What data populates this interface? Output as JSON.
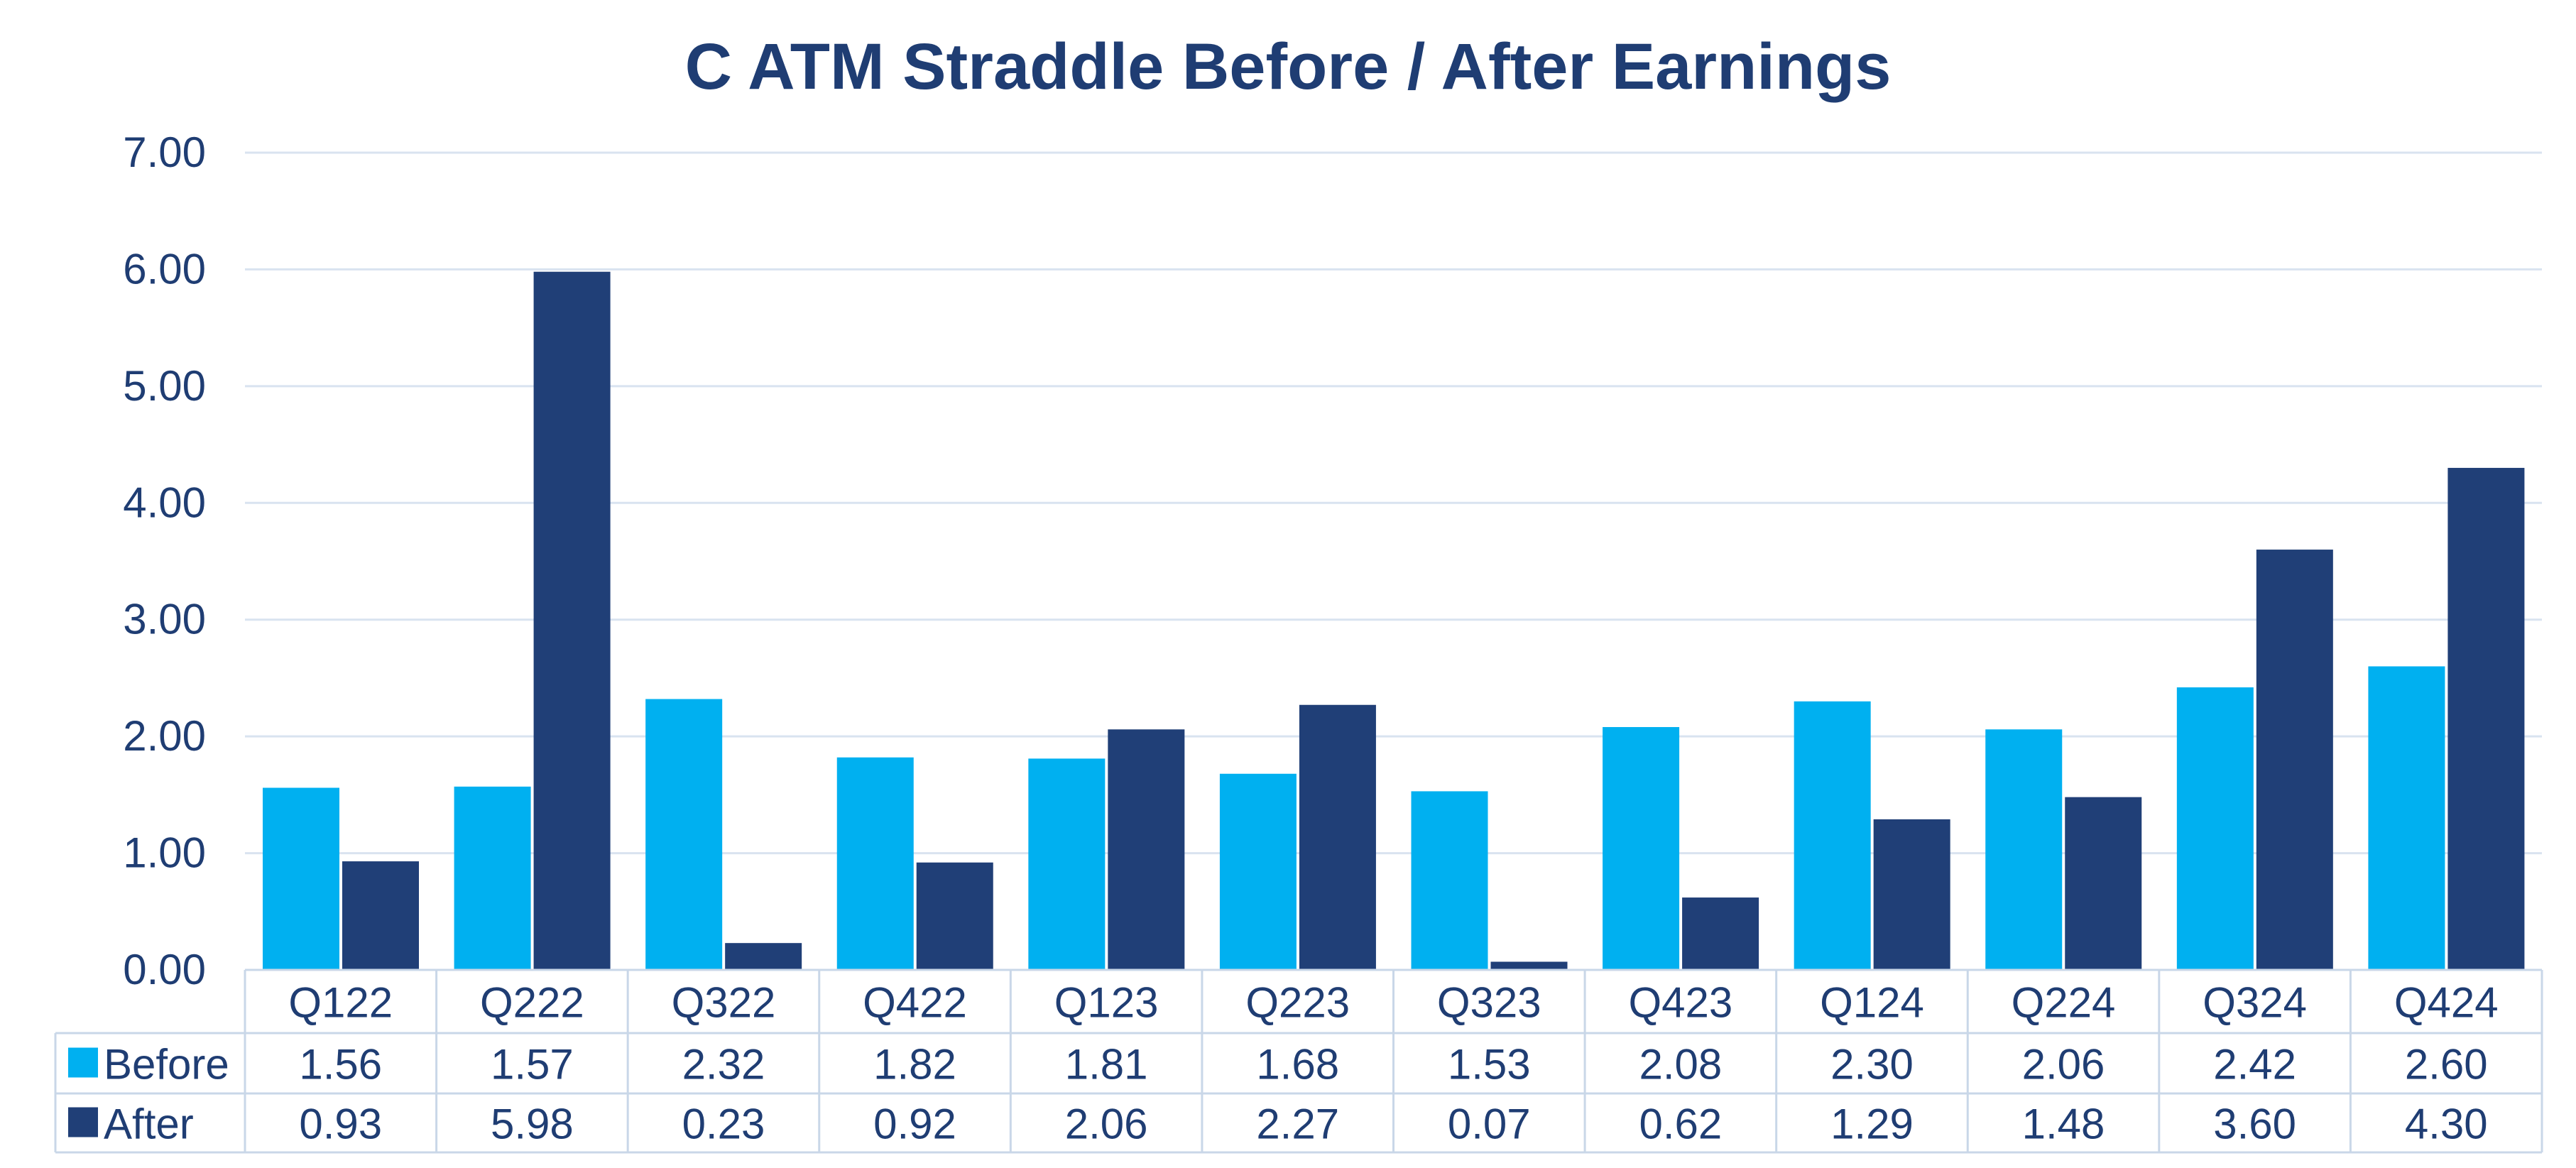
{
  "chart_data": {
    "type": "bar",
    "title": "C ATM Straddle Before / After Earnings",
    "xlabel": "",
    "ylabel": "",
    "ylim": [
      0,
      7
    ],
    "yticks": [
      "7.00",
      "6.00",
      "5.00",
      "4.00",
      "3.00",
      "2.00",
      "1.00",
      "0.00"
    ],
    "grid": true,
    "legend": "data-table-left",
    "categories": [
      "Q122",
      "Q222",
      "Q322",
      "Q422",
      "Q123",
      "Q223",
      "Q323",
      "Q423",
      "Q124",
      "Q224",
      "Q324",
      "Q424"
    ],
    "series": [
      {
        "name": "Before",
        "color": "#00b0f0",
        "values": [
          1.56,
          1.57,
          2.32,
          1.82,
          1.81,
          1.68,
          1.53,
          2.08,
          2.3,
          2.06,
          2.42,
          2.6
        ],
        "labels": [
          "1.56",
          "1.57",
          "2.32",
          "1.82",
          "1.81",
          "1.68",
          "1.53",
          "2.08",
          "2.30",
          "2.06",
          "2.42",
          "2.60"
        ]
      },
      {
        "name": "After",
        "color": "#203f77",
        "values": [
          0.93,
          5.98,
          0.23,
          0.92,
          2.06,
          2.27,
          0.07,
          0.62,
          1.29,
          1.48,
          3.6,
          4.3
        ],
        "labels": [
          "0.93",
          "5.98",
          "0.23",
          "0.92",
          "2.06",
          "2.27",
          "0.07",
          "0.62",
          "1.29",
          "1.48",
          "3.60",
          "4.30"
        ]
      }
    ],
    "colors": {
      "text": "#1f3d73",
      "grid": "#d9e3f0",
      "table_border": "#c9d7e8"
    }
  }
}
